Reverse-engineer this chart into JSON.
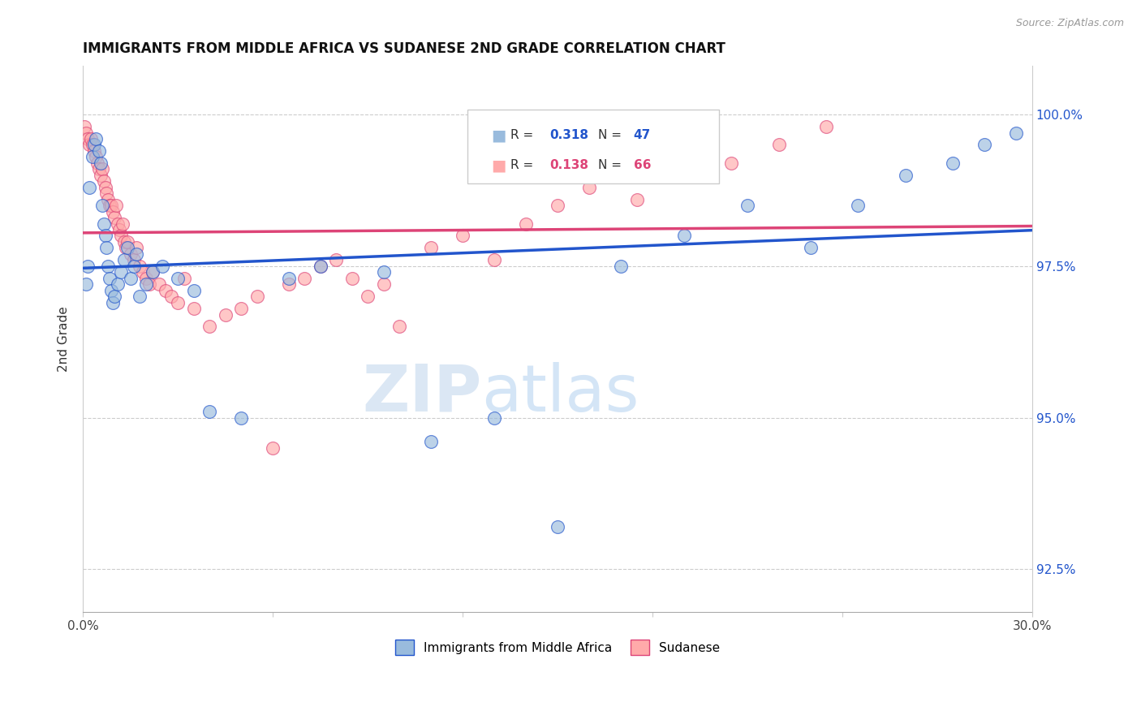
{
  "title": "IMMIGRANTS FROM MIDDLE AFRICA VS SUDANESE 2ND GRADE CORRELATION CHART",
  "source": "Source: ZipAtlas.com",
  "ylabel": "2nd Grade",
  "xlim": [
    0.0,
    30.0
  ],
  "ylim": [
    91.8,
    100.8
  ],
  "yticks": [
    92.5,
    95.0,
    97.5,
    100.0
  ],
  "ytick_labels": [
    "92.5%",
    "95.0%",
    "97.5%",
    "100.0%"
  ],
  "legend_blue_label": "Immigrants from Middle Africa",
  "legend_pink_label": "Sudanese",
  "R_blue": 0.318,
  "N_blue": 47,
  "R_pink": 0.138,
  "N_pink": 66,
  "blue_color": "#99bbdd",
  "pink_color": "#ffaaaa",
  "blue_line_color": "#2255cc",
  "pink_line_color": "#dd4477",
  "blue_x": [
    0.1,
    0.15,
    0.2,
    0.3,
    0.35,
    0.4,
    0.5,
    0.55,
    0.6,
    0.65,
    0.7,
    0.75,
    0.8,
    0.85,
    0.9,
    0.95,
    1.0,
    1.1,
    1.2,
    1.3,
    1.4,
    1.5,
    1.6,
    1.7,
    1.8,
    2.0,
    2.2,
    2.5,
    3.0,
    3.5,
    4.0,
    5.0,
    6.5,
    7.5,
    9.5,
    11.0,
    13.0,
    15.0,
    17.0,
    19.0,
    21.0,
    23.0,
    24.5,
    26.0,
    27.5,
    28.5,
    29.5
  ],
  "blue_y": [
    97.2,
    97.5,
    98.8,
    99.3,
    99.5,
    99.6,
    99.4,
    99.2,
    98.5,
    98.2,
    98.0,
    97.8,
    97.5,
    97.3,
    97.1,
    96.9,
    97.0,
    97.2,
    97.4,
    97.6,
    97.8,
    97.3,
    97.5,
    97.7,
    97.0,
    97.2,
    97.4,
    97.5,
    97.3,
    97.1,
    95.1,
    95.0,
    97.3,
    97.5,
    97.4,
    94.6,
    95.0,
    93.2,
    97.5,
    98.0,
    98.5,
    97.8,
    98.5,
    99.0,
    99.2,
    99.5,
    99.7
  ],
  "pink_x": [
    0.05,
    0.1,
    0.15,
    0.2,
    0.25,
    0.3,
    0.35,
    0.4,
    0.45,
    0.5,
    0.55,
    0.6,
    0.65,
    0.7,
    0.75,
    0.8,
    0.85,
    0.9,
    0.95,
    1.0,
    1.05,
    1.1,
    1.15,
    1.2,
    1.25,
    1.3,
    1.35,
    1.4,
    1.5,
    1.6,
    1.7,
    1.8,
    1.9,
    2.0,
    2.1,
    2.2,
    2.4,
    2.6,
    2.8,
    3.0,
    3.2,
    3.5,
    4.0,
    4.5,
    5.0,
    5.5,
    6.0,
    6.5,
    7.0,
    7.5,
    8.0,
    8.5,
    9.0,
    9.5,
    10.0,
    11.0,
    12.0,
    13.0,
    14.0,
    15.0,
    16.0,
    17.5,
    19.0,
    20.5,
    22.0,
    23.5
  ],
  "pink_y": [
    99.8,
    99.7,
    99.6,
    99.5,
    99.6,
    99.5,
    99.4,
    99.3,
    99.2,
    99.1,
    99.0,
    99.1,
    98.9,
    98.8,
    98.7,
    98.6,
    98.5,
    98.5,
    98.4,
    98.3,
    98.5,
    98.2,
    98.1,
    98.0,
    98.2,
    97.9,
    97.8,
    97.9,
    97.7,
    97.6,
    97.8,
    97.5,
    97.4,
    97.3,
    97.2,
    97.4,
    97.2,
    97.1,
    97.0,
    96.9,
    97.3,
    96.8,
    96.5,
    96.7,
    96.8,
    97.0,
    94.5,
    97.2,
    97.3,
    97.5,
    97.6,
    97.3,
    97.0,
    97.2,
    96.5,
    97.8,
    98.0,
    97.6,
    98.2,
    98.5,
    98.8,
    98.6,
    99.0,
    99.2,
    99.5,
    99.8
  ]
}
